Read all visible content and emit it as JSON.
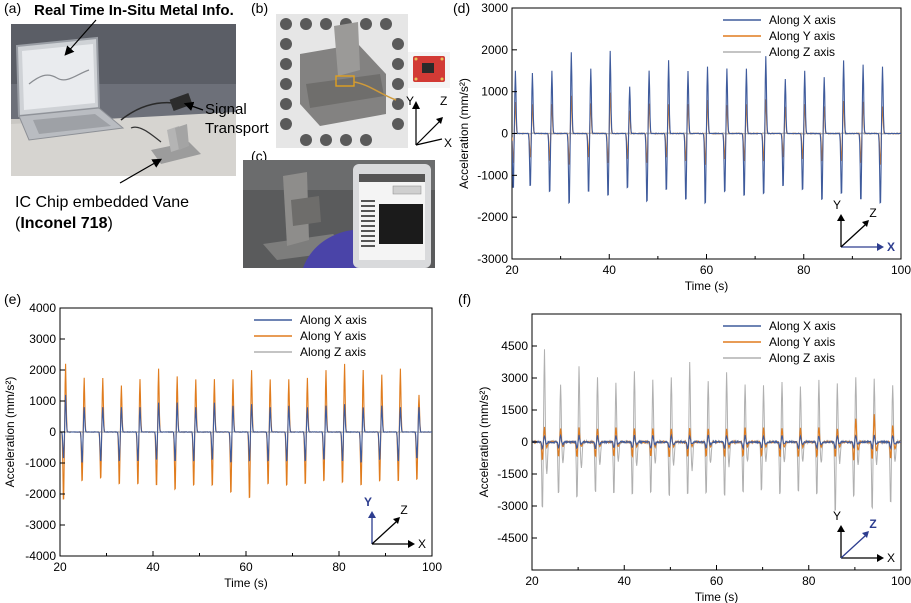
{
  "panels": {
    "a": {
      "letter": "(a)",
      "title": "Real Time In-Situ Metal Info.",
      "signal_line1": "Signal",
      "signal_line2": "Transport",
      "vane_line1": "IC Chip embedded Vane",
      "vane_paren_open": "(",
      "vane_material": "Inconel 718",
      "vane_paren_close": ")"
    },
    "b": {
      "letter": "(b)",
      "axes": {
        "y": "Y",
        "z": "Z",
        "x": "X"
      }
    },
    "c": {
      "letter": "(c)"
    },
    "d": {
      "letter": "(d)"
    },
    "e": {
      "letter": "(e)"
    },
    "f": {
      "letter": "(f)"
    }
  },
  "colors": {
    "x": "#3f5b9c",
    "y": "#e07c1e",
    "z": "#b0b0b0",
    "accent": "#2d3d8f"
  },
  "chart_data": [
    {
      "id": "d",
      "type": "line",
      "xlabel": "Time (s)",
      "ylabel": "Acceleration (mm/s²)",
      "xlim": [
        20,
        100
      ],
      "ylim": [
        -3000,
        3000
      ],
      "xticks": [
        20,
        40,
        60,
        80,
        100
      ],
      "yticks": [
        -3000,
        -2000,
        -1000,
        0,
        1000,
        2000,
        3000
      ],
      "legend_position": "top-right",
      "axis_labels": {
        "x": "X",
        "y": "Y",
        "z": "Z"
      },
      "highlight_axis": "x",
      "peak_times": [
        20.5,
        24,
        28,
        32,
        36,
        40,
        44,
        48,
        52,
        56,
        60,
        64,
        68,
        72,
        76,
        80,
        84,
        88,
        92,
        96
      ],
      "series": [
        {
          "name": "Along X axis",
          "key": "x",
          "peaks": [
            1500,
            1450,
            1500,
            1950,
            1550,
            1980,
            1120,
            1500,
            1750,
            1500,
            1600,
            1550,
            1550,
            1850,
            1300,
            1500,
            1350,
            1750,
            1650,
            1600
          ],
          "troughs": [
            -1400,
            -1350,
            -1500,
            -1800,
            -1500,
            -1600,
            -1400,
            -1750,
            -1450,
            -1700,
            -1800,
            -1500,
            -1600,
            -1550,
            -1350,
            -1450,
            -1700,
            -1550,
            -1700,
            -1800
          ]
        },
        {
          "name": "Along Y axis",
          "key": "y",
          "peaks": [
            750,
            700,
            700,
            900,
            720,
            980,
            550,
            720,
            700,
            700,
            800,
            680,
            700,
            820,
            640,
            700,
            650,
            780,
            760,
            650
          ],
          "troughs": [
            -750,
            -600,
            -700,
            -800,
            -600,
            -750,
            -650,
            -750,
            -600,
            -700,
            -800,
            -650,
            -700,
            -700,
            -600,
            -650,
            -700,
            -700,
            -750,
            -800
          ]
        },
        {
          "name": "Along Z axis",
          "key": "z",
          "peaks": [],
          "troughs": []
        }
      ]
    },
    {
      "id": "e",
      "type": "line",
      "xlabel": "Time (s)",
      "ylabel": "Acceleration (mm/s²)",
      "xlim": [
        20,
        100
      ],
      "ylim": [
        -4000,
        4000
      ],
      "xticks": [
        20,
        40,
        60,
        80,
        100
      ],
      "yticks": [
        -4000,
        -3000,
        -2000,
        -1000,
        0,
        1000,
        2000,
        3000,
        4000
      ],
      "legend_position": "top-right",
      "axis_labels": {
        "x": "X",
        "y": "Y",
        "z": "Z"
      },
      "highlight_axis": "y",
      "peak_times": [
        21,
        25,
        29,
        33,
        37,
        41,
        45,
        49,
        53,
        57,
        61,
        65,
        69,
        73,
        77,
        81,
        85,
        89,
        93,
        97
      ],
      "series": [
        {
          "name": "Along X axis",
          "key": "x",
          "peaks": [
            1200,
            800,
            800,
            800,
            800,
            950,
            950,
            800,
            950,
            850,
            900,
            800,
            850,
            800,
            850,
            900,
            800,
            850,
            800,
            800
          ],
          "troughs": [
            -900,
            -1050,
            -1000,
            -1000,
            -1000,
            -950,
            -1000,
            -1000,
            -950,
            -1050,
            -1000,
            -1000,
            -1000,
            -1000,
            -950,
            -1000,
            -1050,
            -950,
            -1000,
            -900
          ]
        },
        {
          "name": "Along Y axis",
          "key": "y",
          "peaks": [
            2200,
            1750,
            1750,
            1500,
            1700,
            2050,
            1800,
            1700,
            1700,
            1700,
            2000,
            1700,
            1700,
            1750,
            2000,
            2200,
            2000,
            1850,
            2050,
            1200
          ],
          "troughs": [
            -2350,
            -1700,
            -1600,
            -1800,
            -1800,
            -1850,
            -2000,
            -1850,
            -1850,
            -2100,
            -2300,
            -1800,
            -1850,
            -1800,
            -1700,
            -1750,
            -1850,
            -1700,
            -1700,
            -1650
          ]
        },
        {
          "name": "Along Z axis",
          "key": "z",
          "peaks": [],
          "troughs": []
        }
      ]
    },
    {
      "id": "f",
      "type": "line",
      "xlabel": "Time (s)",
      "ylabel": "Acceleration (mm/s²)",
      "xlim": [
        20,
        100
      ],
      "ylim": [
        -6000,
        6000
      ],
      "xticks": [
        20,
        40,
        60,
        80,
        100
      ],
      "yticks": [
        -4500,
        -3000,
        -1500,
        0,
        1500,
        3000,
        4500
      ],
      "legend_position": "top-right",
      "axis_labels": {
        "x": "X",
        "y": "Y",
        "z": "Z"
      },
      "highlight_axis": "z",
      "peak_times": [
        22.5,
        26,
        30,
        34,
        38,
        42,
        46,
        50,
        54,
        58,
        62,
        66,
        70,
        74,
        78,
        82,
        86,
        90,
        94,
        98
      ],
      "series": [
        {
          "name": "Along X axis",
          "key": "x",
          "peaks": [
            300,
            300,
            300,
            300,
            300,
            300,
            300,
            300,
            300,
            300,
            300,
            300,
            300,
            300,
            300,
            300,
            300,
            300,
            300,
            300
          ],
          "troughs": [
            -300,
            -300,
            -300,
            -300,
            -300,
            -300,
            -300,
            -300,
            -300,
            -300,
            -300,
            -300,
            -300,
            -300,
            -300,
            -300,
            -300,
            -300,
            -300,
            -300
          ]
        },
        {
          "name": "Along Y axis",
          "key": "y",
          "peaks": [
            700,
            650,
            650,
            650,
            650,
            650,
            650,
            650,
            650,
            650,
            650,
            650,
            650,
            650,
            650,
            700,
            650,
            1100,
            1300,
            800
          ],
          "troughs": [
            -900,
            -700,
            -700,
            -700,
            -700,
            -700,
            -700,
            -700,
            -700,
            -700,
            -700,
            -700,
            -700,
            -700,
            -700,
            -700,
            -700,
            -900,
            -800,
            -800
          ]
        },
        {
          "name": "Along Z axis",
          "key": "z",
          "peaks": [
            4350,
            2700,
            3600,
            3050,
            2750,
            3300,
            2900,
            3050,
            3800,
            2850,
            3250,
            2650,
            2650,
            2800,
            2600,
            2900,
            2800,
            3100,
            3000,
            2700
          ],
          "troughs": [
            -3300,
            -2600,
            -2800,
            -2500,
            -2600,
            -2600,
            -2500,
            -2700,
            -2600,
            -2600,
            -2700,
            -2500,
            -2400,
            -2600,
            -2500,
            -2600,
            -3500,
            -2700,
            -3300,
            -3000
          ]
        }
      ]
    }
  ]
}
